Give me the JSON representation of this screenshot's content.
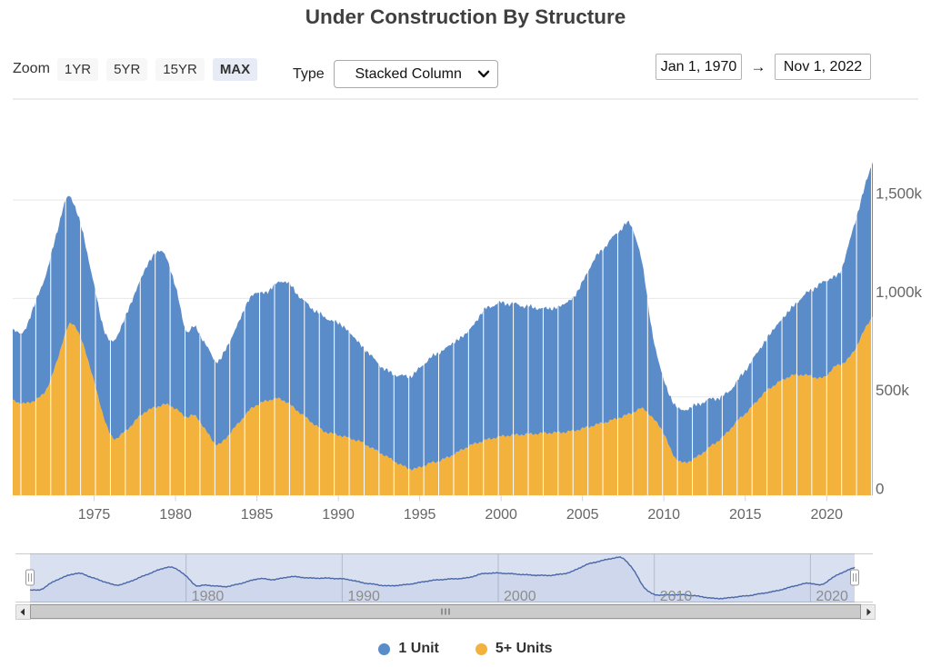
{
  "title": "Under Construction By Structure",
  "controls": {
    "zoom_label": "Zoom",
    "zoom_buttons": [
      {
        "label": "1YR",
        "selected": false
      },
      {
        "label": "5YR",
        "selected": false
      },
      {
        "label": "15YR",
        "selected": false
      },
      {
        "label": "MAX",
        "selected": true
      }
    ],
    "type_label": "Type",
    "type_value": "Stacked Column",
    "date_from": "Jan 1, 1970",
    "date_arrow": "→",
    "date_to": "Nov 1, 2022"
  },
  "legend": {
    "items": [
      {
        "label": "1 Unit",
        "color": "#5b8cca"
      },
      {
        "label": "5+ Units",
        "color": "#f2b23c"
      }
    ]
  },
  "chart_data": {
    "type": "bar",
    "subtype": "stacked_column_monthly",
    "title": "Under Construction By Structure",
    "unit": "thousands of housing units",
    "x_range": [
      1970.0,
      2022.8333
    ],
    "y_axis": {
      "ticks": [
        {
          "v": 0,
          "label": "0"
        },
        {
          "v": 500,
          "label": "500k"
        },
        {
          "v": 1000,
          "label": "1,000k"
        },
        {
          "v": 1500,
          "label": "1,500k"
        }
      ]
    },
    "x_axis": {
      "ticks": [
        1975,
        1980,
        1985,
        1990,
        1995,
        2000,
        2005,
        2010,
        2015,
        2020
      ]
    },
    "stack_order": [
      "5+ Units",
      "1 Unit"
    ],
    "series": [
      {
        "name": "1 Unit",
        "color": "#5b8cca",
        "anchors": [
          [
            1970.0,
            355
          ],
          [
            1970.7,
            355
          ],
          [
            1971.5,
            523
          ],
          [
            1972.0,
            580
          ],
          [
            1972.6,
            655
          ],
          [
            1973.3,
            680
          ],
          [
            1973.7,
            620
          ],
          [
            1974.5,
            540
          ],
          [
            1975.5,
            440
          ],
          [
            1976.1,
            480
          ],
          [
            1977.0,
            590
          ],
          [
            1978.0,
            710
          ],
          [
            1978.9,
            804
          ],
          [
            1979.5,
            745
          ],
          [
            1980.2,
            570
          ],
          [
            1980.6,
            418
          ],
          [
            1981.2,
            455
          ],
          [
            1982.0,
            430
          ],
          [
            1982.6,
            418
          ],
          [
            1983.5,
            480
          ],
          [
            1984.7,
            582
          ],
          [
            1985.5,
            547
          ],
          [
            1986.2,
            581
          ],
          [
            1986.7,
            616
          ],
          [
            1988.0,
            580
          ],
          [
            1989.1,
            582
          ],
          [
            1990.3,
            563
          ],
          [
            1991.4,
            490
          ],
          [
            1992.9,
            432
          ],
          [
            1993.9,
            452
          ],
          [
            1994.6,
            480
          ],
          [
            1995.5,
            530
          ],
          [
            1996.3,
            554
          ],
          [
            1997.1,
            568
          ],
          [
            1998.0,
            580
          ],
          [
            1999.0,
            670
          ],
          [
            2000.0,
            679
          ],
          [
            2000.9,
            663
          ],
          [
            2002.0,
            640
          ],
          [
            2003.2,
            629
          ],
          [
            2003.9,
            650
          ],
          [
            2004.6,
            686
          ],
          [
            2005.7,
            845
          ],
          [
            2006.7,
            915
          ],
          [
            2007.3,
            955
          ],
          [
            2007.95,
            984
          ],
          [
            2008.4,
            845
          ],
          [
            2008.8,
            684
          ],
          [
            2009.3,
            404
          ],
          [
            2009.9,
            269
          ],
          [
            2010.5,
            262
          ],
          [
            2011.1,
            268
          ],
          [
            2011.9,
            270
          ],
          [
            2012.9,
            240
          ],
          [
            2013.7,
            200
          ],
          [
            2014.5,
            199
          ],
          [
            2015.3,
            232
          ],
          [
            2016.1,
            253
          ],
          [
            2016.9,
            294
          ],
          [
            2017.8,
            338
          ],
          [
            2018.6,
            402
          ],
          [
            2019.2,
            453
          ],
          [
            2019.9,
            494
          ],
          [
            2020.4,
            465
          ],
          [
            2020.75,
            430
          ],
          [
            2021.0,
            512
          ],
          [
            2021.6,
            623
          ],
          [
            2022.2,
            710
          ],
          [
            2022.83,
            781
          ]
        ]
      },
      {
        "name": "5+ Units",
        "color": "#f2b23c",
        "anchors": [
          [
            1970.0,
            485
          ],
          [
            1970.7,
            460
          ],
          [
            1971.5,
            487
          ],
          [
            1972.0,
            520
          ],
          [
            1972.6,
            645
          ],
          [
            1973.3,
            850
          ],
          [
            1973.7,
            895
          ],
          [
            1974.5,
            730
          ],
          [
            1975.5,
            420
          ],
          [
            1976.1,
            272
          ],
          [
            1977.0,
            330
          ],
          [
            1978.0,
            420
          ],
          [
            1978.9,
            452
          ],
          [
            1979.5,
            465
          ],
          [
            1980.2,
            430
          ],
          [
            1980.6,
            390
          ],
          [
            1981.2,
            415
          ],
          [
            1982.0,
            310
          ],
          [
            1982.6,
            242
          ],
          [
            1983.5,
            330
          ],
          [
            1984.7,
            448
          ],
          [
            1985.5,
            478
          ],
          [
            1986.2,
            494
          ],
          [
            1986.7,
            483
          ],
          [
            1988.0,
            395
          ],
          [
            1989.1,
            323
          ],
          [
            1990.3,
            300
          ],
          [
            1991.4,
            272
          ],
          [
            1992.9,
            200
          ],
          [
            1993.9,
            150
          ],
          [
            1994.6,
            128
          ],
          [
            1995.5,
            160
          ],
          [
            1996.3,
            176
          ],
          [
            1997.1,
            208
          ],
          [
            1998.0,
            250
          ],
          [
            1999.0,
            280
          ],
          [
            2000.0,
            300
          ],
          [
            2000.9,
            307
          ],
          [
            2002.0,
            312
          ],
          [
            2003.2,
            318
          ],
          [
            2003.9,
            320
          ],
          [
            2004.6,
            330
          ],
          [
            2005.7,
            355
          ],
          [
            2006.7,
            378
          ],
          [
            2007.3,
            395
          ],
          [
            2007.95,
            415
          ],
          [
            2008.4,
            435
          ],
          [
            2008.8,
            447
          ],
          [
            2009.3,
            390
          ],
          [
            2009.9,
            340
          ],
          [
            2010.5,
            208
          ],
          [
            2011.1,
            157
          ],
          [
            2011.9,
            185
          ],
          [
            2012.9,
            250
          ],
          [
            2013.7,
            300
          ],
          [
            2014.5,
            378
          ],
          [
            2015.3,
            438
          ],
          [
            2016.1,
            517
          ],
          [
            2016.9,
            568
          ],
          [
            2017.8,
            609
          ],
          [
            2018.6,
            614
          ],
          [
            2019.2,
            600
          ],
          [
            2019.9,
            591
          ],
          [
            2020.4,
            655
          ],
          [
            2020.75,
            660
          ],
          [
            2021.0,
            668
          ],
          [
            2021.6,
            716
          ],
          [
            2022.2,
            822
          ],
          [
            2022.83,
            914
          ]
        ]
      }
    ],
    "navigator": {
      "shows": "1 Unit",
      "ticks": [
        1980,
        1990,
        2000,
        2010,
        2020
      ],
      "line_color": "#335cad",
      "mask_color": "rgba(102,133,194,0.25)"
    }
  }
}
